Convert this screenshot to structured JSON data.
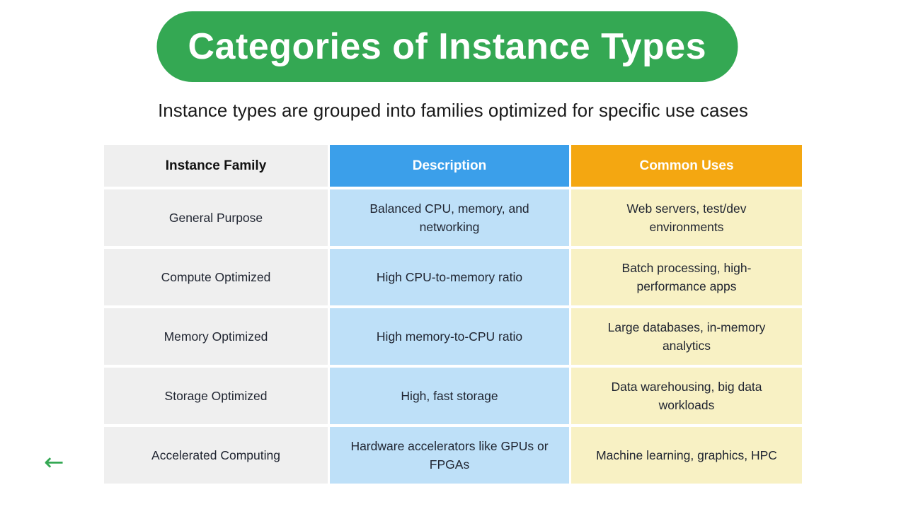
{
  "page": {
    "title": "Categories of Instance Types",
    "subtitle": "Instance types are grouped into families optimized for specific use cases"
  },
  "colors": {
    "pill_green": "#34A853",
    "header_blue": "#3B9FEA",
    "header_orange": "#F4A711",
    "cell_gray": "#EFEFEF",
    "cell_light_blue": "#BEE0F8",
    "cell_light_yellow": "#F8F1C4",
    "arrow_green": "#34A853"
  },
  "table": {
    "columns": [
      "Instance Family",
      "Description",
      "Common Uses"
    ],
    "rows": [
      {
        "family": "General Purpose",
        "description": "Balanced CPU, memory, and networking",
        "uses": "Web servers, test/dev environments"
      },
      {
        "family": "Compute Optimized",
        "description": "High CPU-to-memory ratio",
        "uses": "Batch processing, high-performance apps"
      },
      {
        "family": "Memory Optimized",
        "description": "High memory-to-CPU ratio",
        "uses": "Large databases, in-memory analytics"
      },
      {
        "family": "Storage Optimized",
        "description": "High, fast storage",
        "uses": "Data warehousing, big data workloads"
      },
      {
        "family": "Accelerated Computing",
        "description": "Hardware accelerators like GPUs or FPGAs",
        "uses": "Machine learning, graphics, HPC"
      }
    ]
  },
  "nav": {
    "back_arrow": "←"
  }
}
